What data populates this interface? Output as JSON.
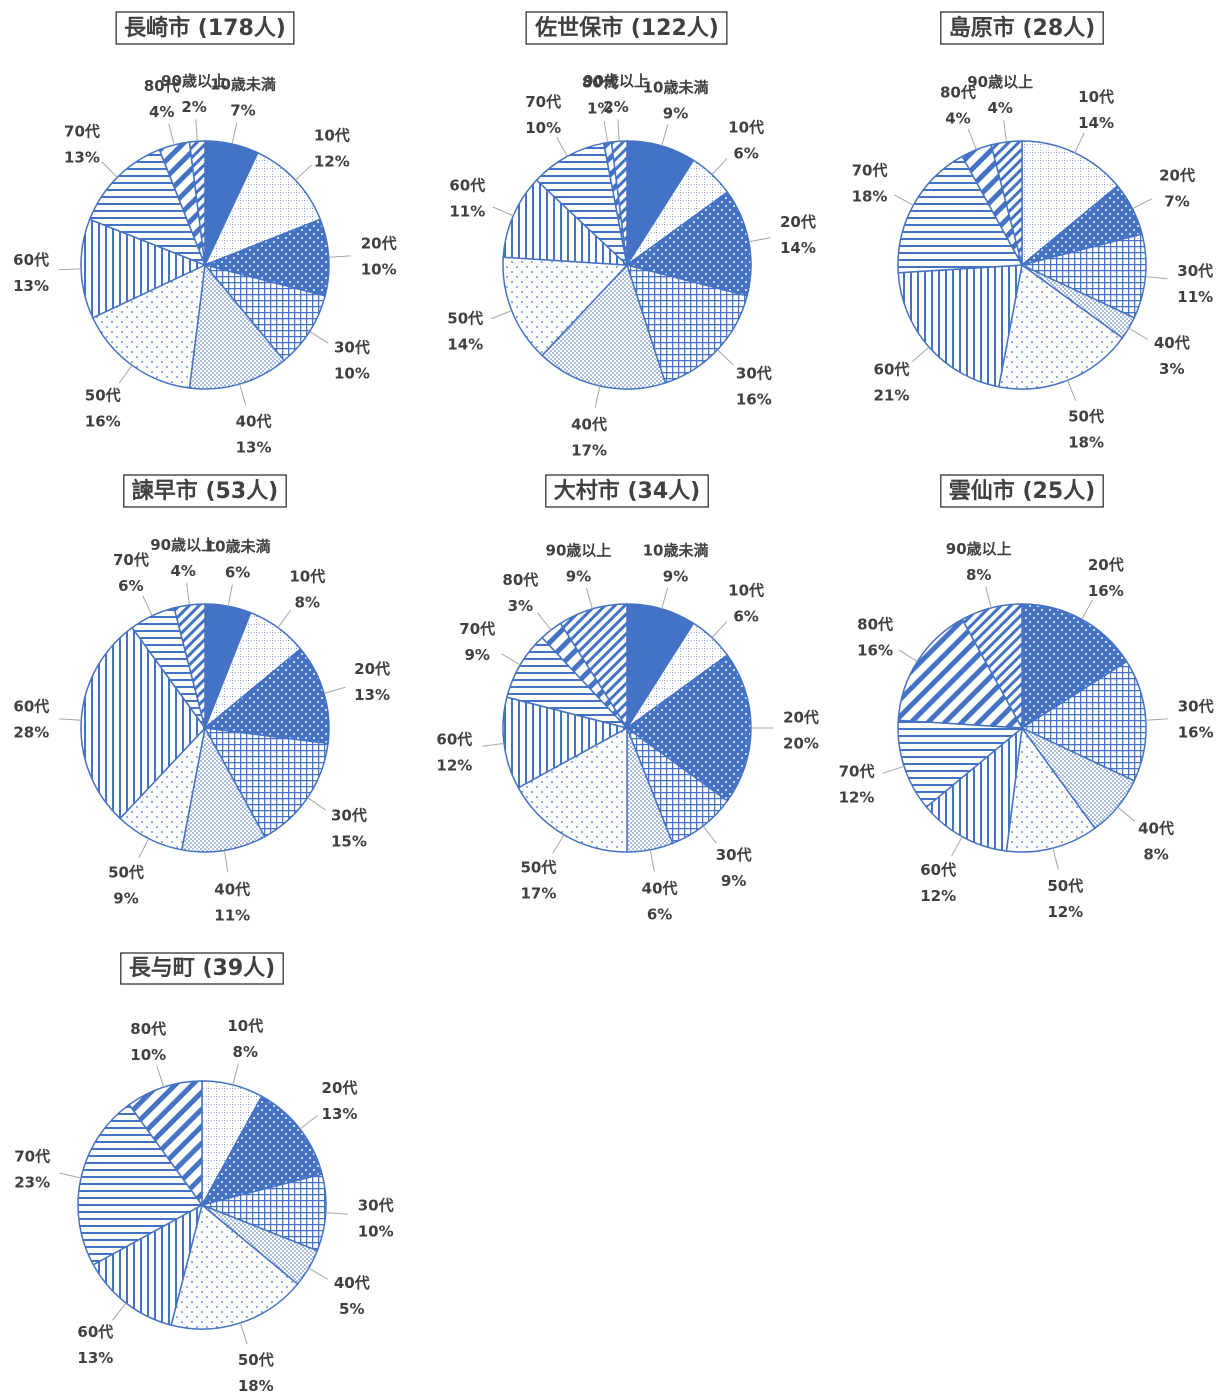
{
  "chart_data": [
    {
      "type": "pie",
      "title": "長崎市 (178人)",
      "categories": [
        "10歳未満",
        "10代",
        "20代",
        "30代",
        "40代",
        "50代",
        "60代",
        "70代",
        "80代",
        "90歳以上"
      ],
      "values": [
        7,
        12,
        10,
        10,
        13,
        16,
        13,
        13,
        4,
        2
      ],
      "value_labels": [
        "7%",
        "12%",
        "10%",
        "10%",
        "13%",
        "16%",
        "13%",
        "13%",
        "4%",
        "2%"
      ],
      "patterns": [
        "solid",
        "dot-grid",
        "solid-dots",
        "grid",
        "fine-dots",
        "sparse-dots",
        "vertical",
        "horizontal",
        "wide-diagonal",
        "narrow-diagonal"
      ]
    },
    {
      "type": "pie",
      "title": "佐世保市 (122人)",
      "categories": [
        "10歳未満",
        "10代",
        "20代",
        "30代",
        "40代",
        "50代",
        "60代",
        "70代",
        "80代",
        "90歳以上"
      ],
      "values": [
        9,
        6,
        14,
        16,
        17,
        14,
        11,
        10,
        1,
        2
      ],
      "value_labels": [
        "9%",
        "6%",
        "14%",
        "16%",
        "17%",
        "14%",
        "11%",
        "10%",
        "1%",
        "2%"
      ],
      "patterns": [
        "solid",
        "dot-grid",
        "solid-dots",
        "grid",
        "fine-dots",
        "sparse-dots",
        "vertical",
        "horizontal",
        "wide-diagonal",
        "narrow-diagonal"
      ]
    },
    {
      "type": "pie",
      "title": "島原市 (28人)",
      "categories": [
        "10代",
        "20代",
        "30代",
        "40代",
        "50代",
        "60代",
        "70代",
        "80代",
        "90歳以上"
      ],
      "values": [
        14,
        7,
        11,
        3,
        18,
        21,
        18,
        4,
        4
      ],
      "value_labels": [
        "14%",
        "7%",
        "11%",
        "3%",
        "18%",
        "21%",
        "18%",
        "4%",
        "4%"
      ],
      "patterns": [
        "dot-grid",
        "solid-dots",
        "grid",
        "fine-dots",
        "sparse-dots",
        "vertical",
        "horizontal",
        "wide-diagonal",
        "narrow-diagonal"
      ]
    },
    {
      "type": "pie",
      "title": "諫早市 (53人)",
      "categories": [
        "10歳未満",
        "10代",
        "20代",
        "30代",
        "40代",
        "50代",
        "60代",
        "70代",
        "90歳以上"
      ],
      "values": [
        6,
        8,
        13,
        15,
        11,
        9,
        28,
        6,
        4
      ],
      "value_labels": [
        "6%",
        "8%",
        "13%",
        "15%",
        "11%",
        "9%",
        "28%",
        "6%",
        "4%"
      ],
      "patterns": [
        "solid",
        "dot-grid",
        "solid-dots",
        "grid",
        "fine-dots",
        "sparse-dots",
        "vertical",
        "horizontal",
        "narrow-diagonal"
      ]
    },
    {
      "type": "pie",
      "title": "大村市 (34人)",
      "categories": [
        "10歳未満",
        "10代",
        "20代",
        "30代",
        "40代",
        "50代",
        "60代",
        "70代",
        "80代",
        "90歳以上"
      ],
      "values": [
        9,
        6,
        20,
        9,
        6,
        17,
        12,
        9,
        3,
        9
      ],
      "value_labels": [
        "9%",
        "6%",
        "20%",
        "9%",
        "6%",
        "17%",
        "12%",
        "9%",
        "3%",
        "9%"
      ],
      "patterns": [
        "solid",
        "dot-grid",
        "solid-dots",
        "grid",
        "fine-dots",
        "sparse-dots",
        "vertical",
        "horizontal",
        "wide-diagonal",
        "narrow-diagonal"
      ]
    },
    {
      "type": "pie",
      "title": "雲仙市 (25人)",
      "categories": [
        "20代",
        "30代",
        "40代",
        "50代",
        "60代",
        "70代",
        "80代",
        "90歳以上"
      ],
      "values": [
        16,
        16,
        8,
        12,
        12,
        12,
        16,
        8
      ],
      "value_labels": [
        "16%",
        "16%",
        "8%",
        "12%",
        "12%",
        "12%",
        "16%",
        "8%"
      ],
      "patterns": [
        "solid-dots",
        "grid",
        "fine-dots",
        "sparse-dots",
        "vertical",
        "horizontal",
        "wide-diagonal",
        "narrow-diagonal"
      ]
    },
    {
      "type": "pie",
      "title": "長与町 (39人)",
      "categories": [
        "10代",
        "20代",
        "30代",
        "40代",
        "50代",
        "60代",
        "70代",
        "80代"
      ],
      "values": [
        8,
        13,
        10,
        5,
        18,
        13,
        23,
        10
      ],
      "value_labels": [
        "8%",
        "13%",
        "10%",
        "5%",
        "18%",
        "13%",
        "23%",
        "10%"
      ],
      "patterns": [
        "dot-grid",
        "solid-dots",
        "grid",
        "fine-dots",
        "sparse-dots",
        "vertical",
        "horizontal",
        "wide-diagonal"
      ]
    }
  ]
}
